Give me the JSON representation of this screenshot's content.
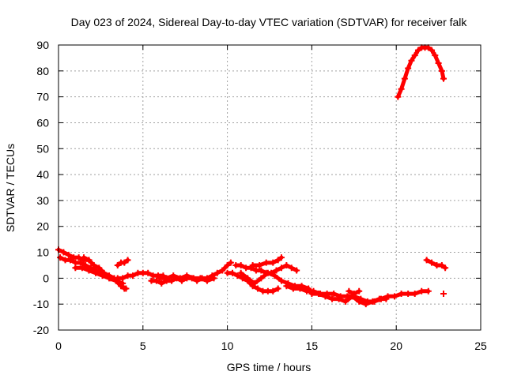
{
  "chart_data": {
    "type": "scatter",
    "title": "Day 023 of 2024, Sidereal Day-to-day VTEC variation (SDTVAR) for receiver falk",
    "xlabel": "GPS time / hours",
    "ylabel": "SDTVAR / TECUs",
    "xlim": [
      0,
      25
    ],
    "ylim": [
      -20,
      90
    ],
    "xticks": [
      0,
      5,
      10,
      15,
      20,
      25
    ],
    "yticks": [
      -20,
      -10,
      0,
      10,
      20,
      30,
      40,
      50,
      60,
      70,
      80,
      90
    ],
    "grid": true,
    "marker": "+",
    "series": [
      {
        "name": "SDTVAR",
        "color": "#ff0000",
        "segments": [
          {
            "x": [
              0.0,
              0.3,
              0.6,
              0.9,
              1.2,
              1.5,
              1.8
            ],
            "y": [
              11,
              10,
              9,
              8,
              8,
              7,
              7
            ]
          },
          {
            "x": [
              0.1,
              0.4,
              0.7,
              1.0,
              1.3,
              1.6,
              1.9,
              2.2,
              2.5,
              2.8,
              3.1,
              3.4,
              3.7,
              4.0
            ],
            "y": [
              8,
              7,
              7,
              6,
              6,
              5,
              4,
              3,
              2,
              1,
              0,
              -1,
              -3,
              -4
            ]
          },
          {
            "x": [
              1.0,
              1.4,
              1.8,
              2.2,
              2.6,
              3.0,
              3.4,
              3.8
            ],
            "y": [
              4,
              4,
              3,
              2,
              1,
              0,
              -1,
              -2
            ]
          },
          {
            "x": [
              1.5,
              1.8,
              2.1,
              2.4,
              2.7,
              3.0,
              3.3,
              3.6,
              3.9
            ],
            "y": [
              8,
              7,
              5,
              4,
              2,
              1,
              0,
              -2,
              -4
            ]
          },
          {
            "x": [
              3.5,
              3.7,
              3.9,
              4.1
            ],
            "y": [
              5,
              6,
              6,
              7
            ]
          },
          {
            "x": [
              3.5,
              3.8,
              4.1,
              4.4,
              4.7,
              5.0,
              5.3,
              5.6,
              5.9,
              6.2
            ],
            "y": [
              0,
              0,
              1,
              1,
              2,
              2,
              2,
              1,
              1,
              1
            ]
          },
          {
            "x": [
              5.5,
              5.8,
              6.1,
              6.4,
              6.7,
              7.0,
              7.3,
              7.6,
              7.9,
              8.2,
              8.5,
              8.8,
              9.1,
              9.4,
              9.7,
              10.0,
              10.2
            ],
            "y": [
              -1,
              -1,
              -2,
              -1,
              -1,
              0,
              -1,
              0,
              0,
              -1,
              0,
              0,
              1,
              2,
              3,
              5,
              6
            ]
          },
          {
            "x": [
              6.0,
              6.4,
              6.8,
              7.2,
              7.6,
              8.0,
              8.4,
              8.8,
              9.2
            ],
            "y": [
              0,
              0,
              1,
              0,
              1,
              0,
              0,
              -1,
              0
            ]
          },
          {
            "x": [
              10.0,
              10.3,
              10.6,
              10.9,
              11.2,
              11.5,
              11.8,
              12.1,
              12.4,
              12.7,
              13.0
            ],
            "y": [
              2,
              2,
              1,
              0,
              -1,
              -3,
              -4,
              -5,
              -5,
              -5,
              -4
            ]
          },
          {
            "x": [
              10.5,
              10.8,
              11.1,
              11.4,
              11.7,
              12.0,
              12.3,
              12.6,
              12.9,
              13.2,
              13.5,
              13.8,
              14.1
            ],
            "y": [
              5,
              5,
              4,
              4,
              3,
              3,
              2,
              2,
              3,
              4,
              5,
              4,
              3
            ]
          },
          {
            "x": [
              10.8,
              11.2,
              11.6,
              12.0,
              12.4,
              12.8,
              13.2,
              13.6,
              14.0,
              14.4,
              14.8
            ],
            "y": [
              2,
              0,
              -2,
              0,
              2,
              1,
              -1,
              -2,
              -3,
              -3,
              -4
            ]
          },
          {
            "x": [
              11.5,
              11.9,
              12.3,
              12.7,
              13.0,
              13.2
            ],
            "y": [
              5,
              5,
              6,
              6,
              7,
              8
            ]
          },
          {
            "x": [
              13.5,
              13.9,
              14.3,
              14.7,
              15.1,
              15.5,
              15.9,
              16.3,
              16.7,
              17.1,
              17.5,
              17.9,
              18.3,
              18.7,
              19.1,
              19.5,
              19.9,
              20.3,
              20.7,
              21.1,
              21.5,
              21.9
            ],
            "y": [
              -3,
              -4,
              -4,
              -5,
              -5,
              -6,
              -6,
              -6,
              -7,
              -7,
              -7,
              -8,
              -9,
              -9,
              -8,
              -7,
              -7,
              -6,
              -6,
              -6,
              -5,
              -5
            ]
          },
          {
            "x": [
              15.0,
              15.4,
              15.8,
              16.2,
              16.6,
              17.0,
              17.4,
              17.8,
              18.2,
              18.6,
              19.0,
              19.4
            ],
            "y": [
              -6,
              -6,
              -7,
              -8,
              -8,
              -9,
              -7,
              -9,
              -10,
              -9,
              -8,
              -8
            ]
          },
          {
            "x": [
              17.2,
              17.5,
              17.8
            ],
            "y": [
              -5,
              -6,
              -5
            ]
          },
          {
            "x": [
              20.1,
              20.3,
              20.5,
              20.7,
              20.9,
              21.1,
              21.3,
              21.5,
              21.7,
              21.9,
              22.1,
              22.3,
              22.5,
              22.7,
              22.8
            ],
            "y": [
              70,
              73,
              77,
              81,
              84,
              86,
              88,
              89,
              89,
              89,
              88,
              86,
              83,
              80,
              77
            ]
          },
          {
            "x": [
              21.8,
              22.1,
              22.4,
              22.7,
              22.9
            ],
            "y": [
              7,
              6,
              5,
              5,
              4
            ]
          },
          {
            "x": [
              22.8
            ],
            "y": [
              -6
            ]
          }
        ]
      }
    ]
  }
}
